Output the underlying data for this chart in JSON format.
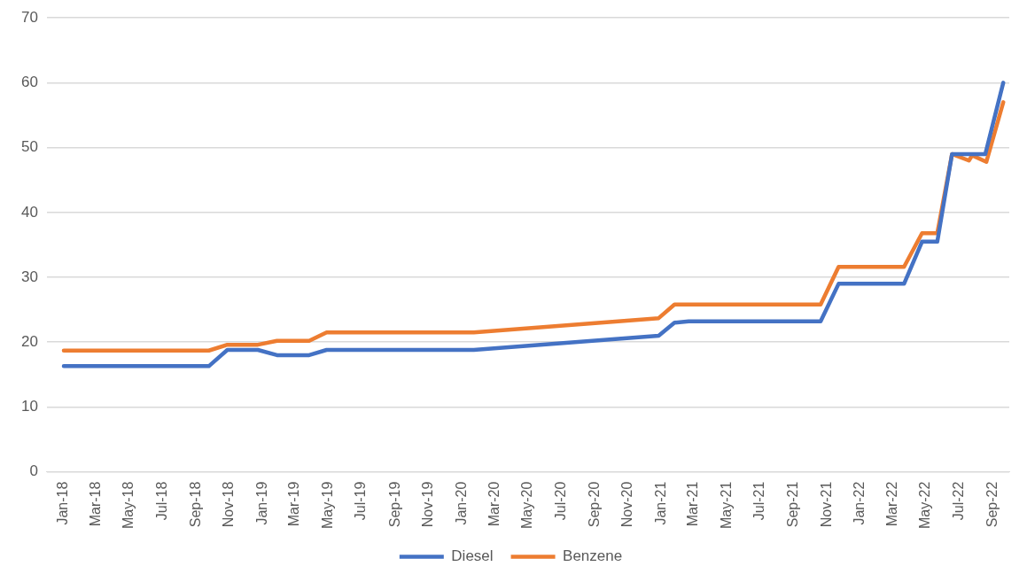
{
  "chart_data": {
    "type": "line",
    "series": [
      {
        "name": "Diesel",
        "color": "#4472c4",
        "x": [
          "2018-01-01",
          "2018-09-24",
          "2018-10-28",
          "2018-12-23",
          "2019-01-27",
          "2019-03-27",
          "2019-04-28",
          "2020-01-23",
          "2020-12-27",
          "2021-01-25",
          "2021-02-20",
          "2021-10-20",
          "2021-11-22",
          "2022-03-22",
          "2022-04-24",
          "2022-05-22",
          "2022-06-18",
          "2022-08-18",
          "2022-09-20"
        ],
        "values": [
          16.3,
          16.3,
          18.8,
          18.8,
          18.0,
          18.0,
          18.8,
          18.8,
          21.0,
          23.0,
          23.2,
          23.2,
          29.0,
          29.0,
          35.5,
          35.5,
          49.0,
          49.0,
          60.0
        ]
      },
      {
        "name": "Benzene",
        "color": "#ed7d31",
        "x": [
          "2018-01-01",
          "2018-09-24",
          "2018-10-28",
          "2018-12-23",
          "2019-01-27",
          "2019-03-27",
          "2019-04-28",
          "2020-01-23",
          "2020-12-27",
          "2021-01-25",
          "2021-02-20",
          "2021-10-20",
          "2021-11-22",
          "2022-03-22",
          "2022-04-24",
          "2022-05-22",
          "2022-06-18",
          "2022-07-19",
          "2022-07-25",
          "2022-08-20",
          "2022-09-20"
        ],
        "values": [
          18.7,
          18.7,
          19.6,
          19.6,
          20.2,
          20.2,
          21.5,
          21.5,
          23.7,
          25.8,
          25.8,
          25.8,
          31.6,
          31.6,
          36.8,
          36.8,
          49.0,
          48.0,
          48.8,
          47.8,
          57.0
        ]
      }
    ],
    "xlim": [
      "2017-12",
      "2022-10"
    ],
    "xticks": [
      {
        "value": "2018-01",
        "label": "Jan-18"
      },
      {
        "value": "2018-03",
        "label": "Mar-18"
      },
      {
        "value": "2018-05",
        "label": "May-18"
      },
      {
        "value": "2018-07",
        "label": "Jul-18"
      },
      {
        "value": "2018-09",
        "label": "Sep-18"
      },
      {
        "value": "2018-11",
        "label": "Nov-18"
      },
      {
        "value": "2019-01",
        "label": "Jan-19"
      },
      {
        "value": "2019-03",
        "label": "Mar-19"
      },
      {
        "value": "2019-05",
        "label": "May-19"
      },
      {
        "value": "2019-07",
        "label": "Jul-19"
      },
      {
        "value": "2019-09",
        "label": "Sep-19"
      },
      {
        "value": "2019-11",
        "label": "Nov-19"
      },
      {
        "value": "2020-01",
        "label": "Jan-20"
      },
      {
        "value": "2020-03",
        "label": "Mar-20"
      },
      {
        "value": "2020-05",
        "label": "May-20"
      },
      {
        "value": "2020-07",
        "label": "Jul-20"
      },
      {
        "value": "2020-09",
        "label": "Sep-20"
      },
      {
        "value": "2020-11",
        "label": "Nov-20"
      },
      {
        "value": "2021-01",
        "label": "Jan-21"
      },
      {
        "value": "2021-03",
        "label": "Mar-21"
      },
      {
        "value": "2021-05",
        "label": "May-21"
      },
      {
        "value": "2021-07",
        "label": "Jul-21"
      },
      {
        "value": "2021-09",
        "label": "Sep-21"
      },
      {
        "value": "2021-11",
        "label": "Nov-21"
      },
      {
        "value": "2022-01",
        "label": "Jan-22"
      },
      {
        "value": "2022-03",
        "label": "Mar-22"
      },
      {
        "value": "2022-05",
        "label": "May-22"
      },
      {
        "value": "2022-07",
        "label": "Jul-22"
      },
      {
        "value": "2022-09",
        "label": "Sep-22"
      }
    ],
    "ylim": [
      0,
      70
    ],
    "yticks": [
      0,
      10,
      20,
      30,
      40,
      50,
      60,
      70
    ],
    "grid": "y",
    "legend": "bottom",
    "marker": "none",
    "line_style": "solid"
  }
}
